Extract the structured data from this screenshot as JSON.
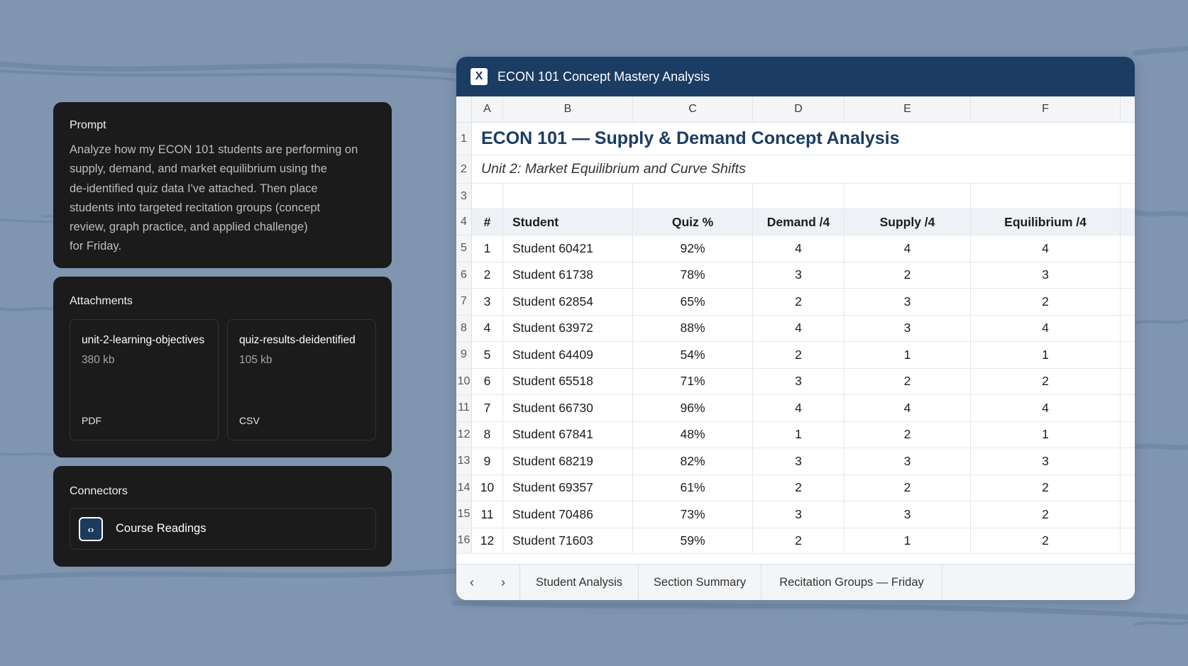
{
  "prompt": {
    "title": "Prompt",
    "text": "Analyze how my ECON 101 students are performing on\nsupply, demand, and market equilibrium using the\nde-identified quiz data I've attached. Then place\nstudents into targeted recitation groups (concept\nreview, graph practice, and applied challenge)\nfor Friday."
  },
  "attachments": {
    "title": "Attachments",
    "items": [
      {
        "name": "unit-2-learning-objectives",
        "size": "380 kb",
        "type": "PDF"
      },
      {
        "name": "quiz-results-deidentified",
        "size": "105 kb",
        "type": "CSV"
      }
    ]
  },
  "connectors": {
    "title": "Connectors",
    "items": [
      {
        "label": "Course Readings",
        "icon": "code-brackets-icon"
      }
    ]
  },
  "window": {
    "title": "ECON 101 Concept Mastery Analysis",
    "app_icon": "X"
  },
  "sheet": {
    "columns": [
      "A",
      "B",
      "C",
      "D",
      "E",
      "F"
    ],
    "row_numbers": [
      "1",
      "2",
      "3",
      "4",
      "5",
      "6",
      "7",
      "8",
      "9",
      "10",
      "11",
      "12",
      "13",
      "14",
      "15",
      "16"
    ],
    "title": "ECON 101 — Supply & Demand Concept Analysis",
    "subtitle": "Unit 2: Market Equilibrium and Curve Shifts",
    "headers": [
      "#",
      "Student",
      "Quiz %",
      "Demand /4",
      "Supply /4",
      "Equilibrium /4"
    ],
    "rows": [
      [
        "1",
        "Student 60421",
        "92%",
        "4",
        "4",
        "4"
      ],
      [
        "2",
        "Student 61738",
        "78%",
        "3",
        "2",
        "3"
      ],
      [
        "3",
        "Student 62854",
        "65%",
        "2",
        "3",
        "2"
      ],
      [
        "4",
        "Student 63972",
        "88%",
        "4",
        "3",
        "4"
      ],
      [
        "5",
        "Student 64409",
        "54%",
        "2",
        "1",
        "1"
      ],
      [
        "6",
        "Student 65518",
        "71%",
        "3",
        "2",
        "2"
      ],
      [
        "7",
        "Student 66730",
        "96%",
        "4",
        "4",
        "4"
      ],
      [
        "8",
        "Student 67841",
        "48%",
        "1",
        "2",
        "1"
      ],
      [
        "9",
        "Student 68219",
        "82%",
        "3",
        "3",
        "3"
      ],
      [
        "10",
        "Student 69357",
        "61%",
        "2",
        "2",
        "2"
      ],
      [
        "11",
        "Student 70486",
        "73%",
        "3",
        "3",
        "2"
      ],
      [
        "12",
        "Student 71603",
        "59%",
        "2",
        "1",
        "2"
      ]
    ]
  },
  "tabs": {
    "prev": "‹",
    "next": "›",
    "items": [
      "Student Analysis",
      "Section Summary",
      "Recitation Groups — Friday"
    ]
  }
}
